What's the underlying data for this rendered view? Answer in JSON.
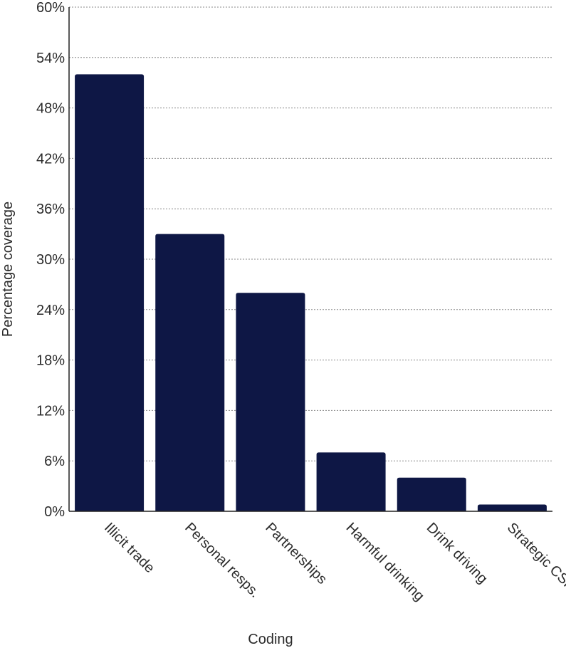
{
  "chart_data": {
    "type": "bar",
    "title": "",
    "xlabel": "Coding",
    "ylabel": "Percentage coverage",
    "categories": [
      "Illicit trade",
      "Personal resps.",
      "Partnerships",
      "Harmful drinking",
      "Drink driving",
      "Strategic CSR"
    ],
    "values": [
      52,
      33,
      26,
      7,
      4,
      0.8
    ],
    "ylim": [
      0,
      60
    ],
    "yticks": [
      0,
      6,
      12,
      18,
      24,
      30,
      36,
      42,
      48,
      54,
      60
    ],
    "ytick_labels": [
      "0%",
      "6%",
      "12%",
      "18%",
      "24%",
      "30%",
      "36%",
      "42%",
      "48%",
      "54%",
      "60%"
    ],
    "grid": true,
    "bar_color": "#0e1745"
  }
}
